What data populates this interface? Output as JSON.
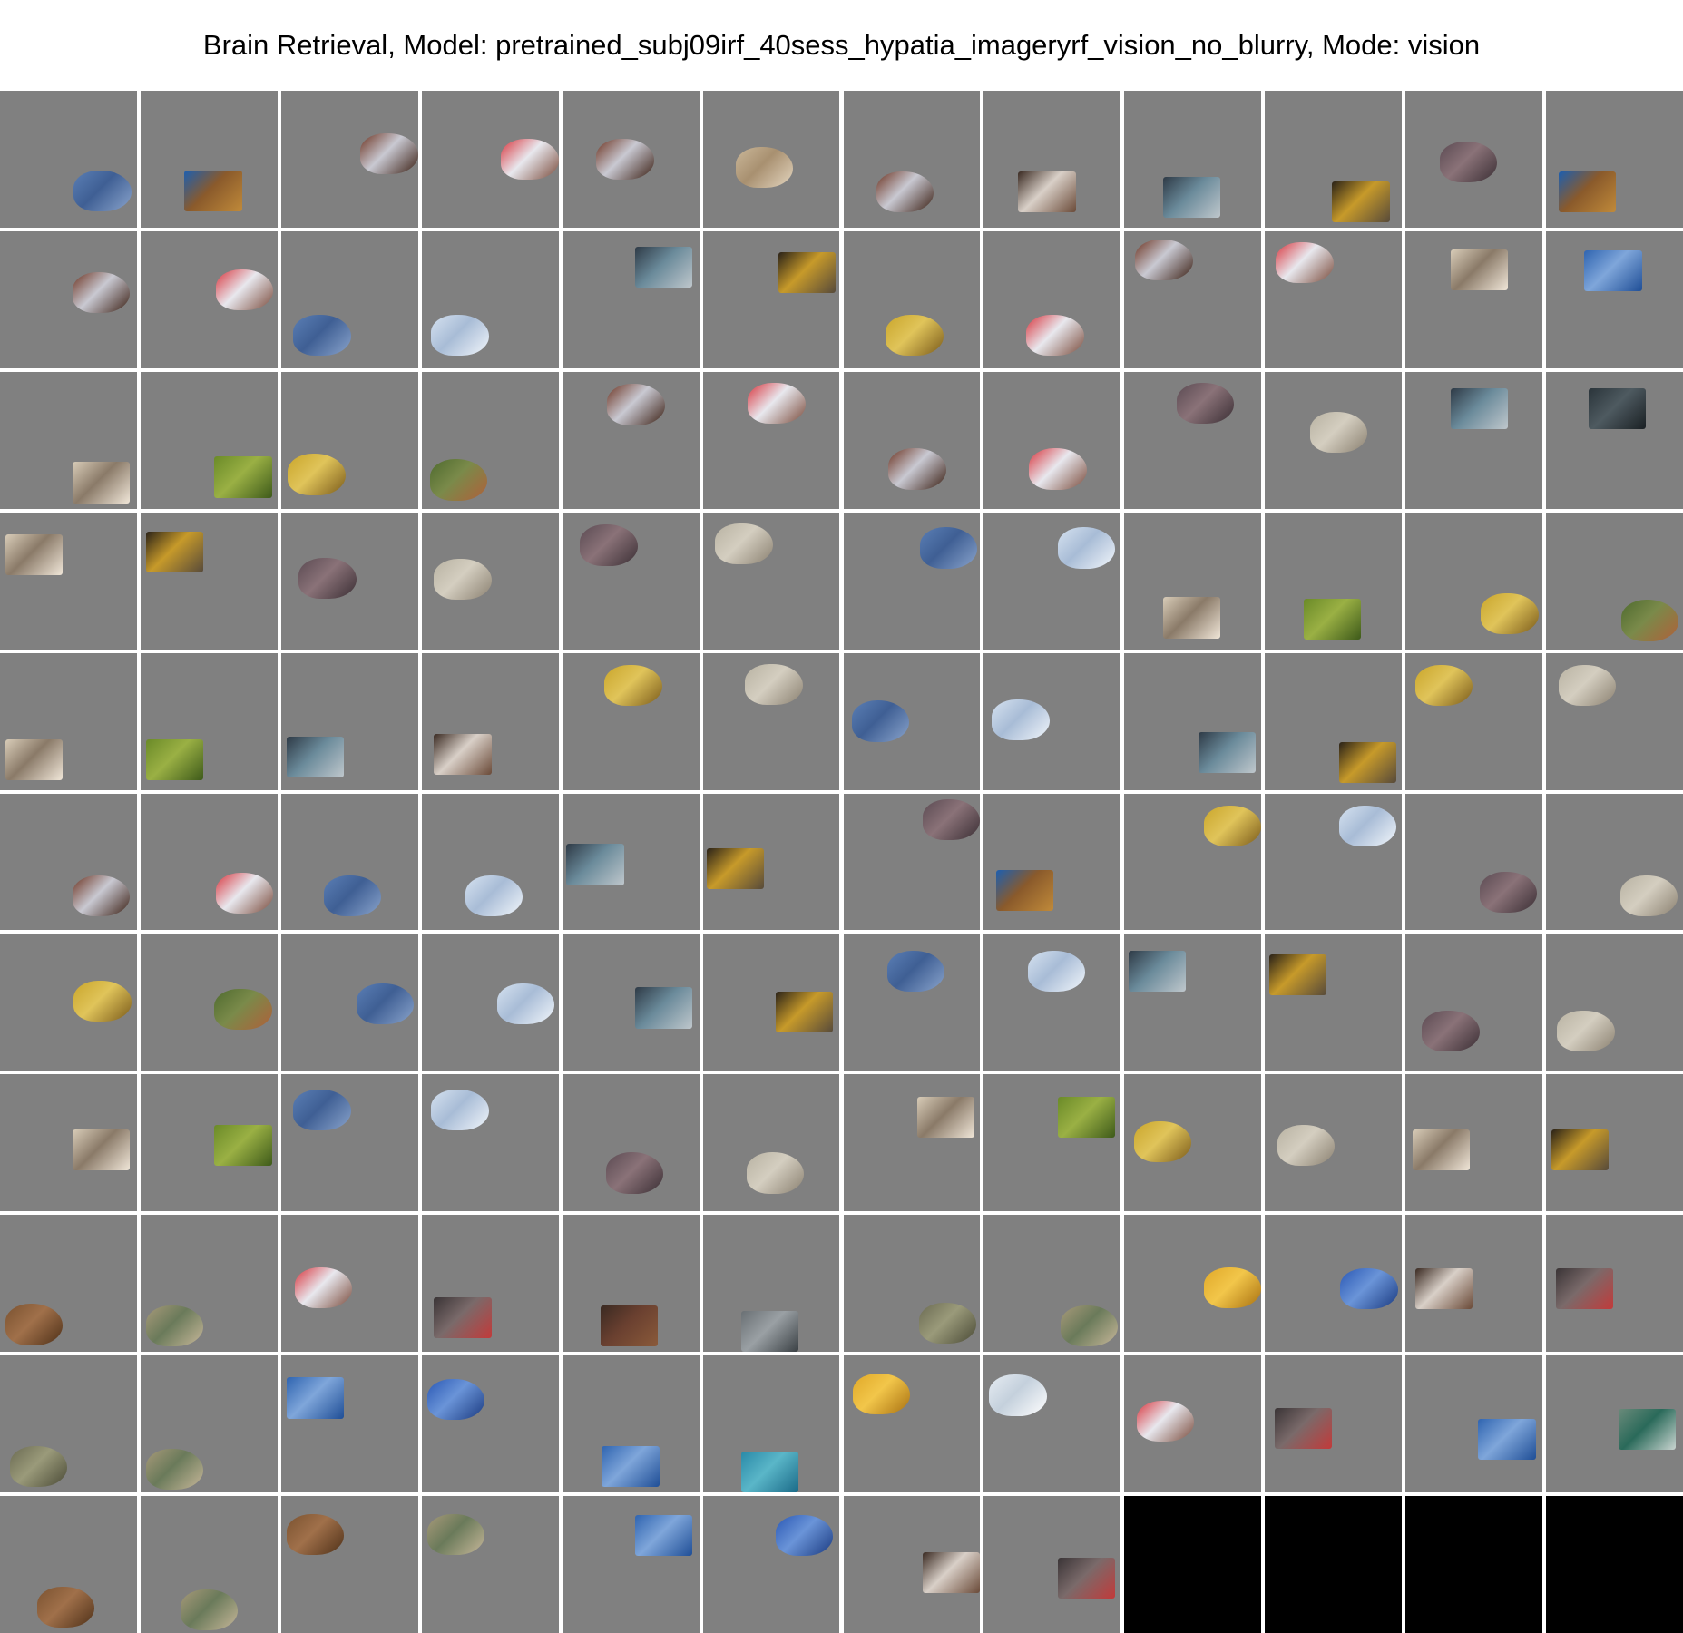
{
  "title": "Brain Retrieval, Model: pretrained_subj09irf_40sess_hypatia_imageryrf_vision_no_blurry, Mode: vision",
  "grid": {
    "rows": 11,
    "cols": 12,
    "empty_fill": "#000000",
    "cell_background": "#808080"
  },
  "thumbnail_types": {
    "coral": {
      "kind": "blob",
      "colors": [
        "#5b7fb5",
        "#3f5f94",
        "#8aa4cc"
      ]
    },
    "reef": {
      "kind": "photo",
      "colors": [
        "#1d5fb0",
        "#8a5a2b",
        "#c08a3a"
      ]
    },
    "baby": {
      "kind": "blob",
      "colors": [
        "#6b3220",
        "#c9c9d2",
        "#3a1e12"
      ]
    },
    "redshirt": {
      "kind": "blob",
      "colors": [
        "#d8343c",
        "#e8e8ee",
        "#7a4a3a"
      ]
    },
    "stones": {
      "kind": "blob",
      "colors": [
        "#cbb89a",
        "#a89070",
        "#e4d6c0"
      ]
    },
    "people": {
      "kind": "photo",
      "colors": [
        "#3a2a22",
        "#d9d0c8",
        "#6a4a38"
      ]
    },
    "crowd": {
      "kind": "photo",
      "colors": [
        "#2e3a46",
        "#6a8a9a",
        "#bfc7cc"
      ]
    },
    "crowdyellow": {
      "kind": "photo",
      "colors": [
        "#2a2218",
        "#c79a2a",
        "#574a3a"
      ]
    },
    "post": {
      "kind": "blob",
      "colors": [
        "#5a4a52",
        "#8a7278",
        "#3a2e34"
      ]
    },
    "stick": {
      "kind": "blob",
      "colors": [
        "#b8b2a2",
        "#d4cec0",
        "#8a8070"
      ]
    },
    "scroll": {
      "kind": "photo",
      "colors": [
        "#d8ccb8",
        "#8a7a68",
        "#f0e6d8"
      ]
    },
    "sky": {
      "kind": "photo",
      "colors": [
        "#2f64b0",
        "#7fa6da",
        "#1f4e96"
      ]
    },
    "leaves": {
      "kind": "blob",
      "colors": [
        "#c9a52a",
        "#e0c45a",
        "#7a5a1a"
      ]
    },
    "clouds": {
      "kind": "blob",
      "colors": [
        "#d6e2f0",
        "#a8bcd6",
        "#f2f6fb"
      ]
    },
    "grass": {
      "kind": "photo",
      "colors": [
        "#6a8a28",
        "#9ab044",
        "#3e5a1a"
      ]
    },
    "turtle": {
      "kind": "blob",
      "colors": [
        "#4e6a2e",
        "#7a8a4a",
        "#b0603a"
      ]
    },
    "darkpanel": {
      "kind": "photo",
      "colors": [
        "#2a343a",
        "#4e5a60",
        "#1a2024"
      ]
    },
    "walrus": {
      "kind": "blob",
      "colors": [
        "#7a5230",
        "#a0704a",
        "#4e3018"
      ]
    },
    "snake": {
      "kind": "blob",
      "colors": [
        "#a89a7a",
        "#6a7a5a",
        "#c8b89a"
      ]
    },
    "group": {
      "kind": "photo",
      "colors": [
        "#3a3436",
        "#7a6a6a",
        "#c23a3a"
      ]
    },
    "roof": {
      "kind": "photo",
      "colors": [
        "#3a2a22",
        "#6a4030",
        "#8a5a3a"
      ]
    },
    "road": {
      "kind": "photo",
      "colors": [
        "#6a7074",
        "#9aa0a4",
        "#3a4044"
      ]
    },
    "croc": {
      "kind": "blob",
      "colors": [
        "#6a6a52",
        "#9a9a7a",
        "#4a4a36"
      ]
    },
    "chips": {
      "kind": "blob",
      "colors": [
        "#e0a828",
        "#f2c64a",
        "#a87010"
      ]
    },
    "blueobj": {
      "kind": "blob",
      "colors": [
        "#2a58b4",
        "#6a94d8",
        "#1a3a80"
      ]
    },
    "sea": {
      "kind": "photo",
      "colors": [
        "#2a8aa8",
        "#5ab6c8",
        "#1a6a88"
      ]
    },
    "cloud": {
      "kind": "blob",
      "colors": [
        "#e6ecf2",
        "#c4d0dc",
        "#ffffff"
      ]
    },
    "seascape": {
      "kind": "photo",
      "colors": [
        "#6a8a7a",
        "#2a6a5a",
        "#c8d4d0"
      ]
    }
  },
  "cells": [
    [
      [
        "coral",
        0.54,
        0.58
      ],
      [
        "reef",
        0.32,
        0.58
      ],
      [
        "baby",
        0.58,
        0.31
      ],
      [
        "redshirt",
        0.6,
        0.35
      ],
      [
        "baby",
        0.25,
        0.35
      ],
      [
        "stones",
        0.24,
        0.41
      ],
      [
        "baby",
        0.24,
        0.59
      ],
      [
        "people",
        0.25,
        0.59
      ],
      [
        "crowd",
        0.28,
        0.63
      ],
      [
        "crowdyellow",
        0.49,
        0.66
      ],
      [
        "post",
        0.25,
        0.37
      ],
      [
        "reef",
        0.09,
        0.59
      ]
    ],
    [
      [
        "baby",
        0.53,
        0.3
      ],
      [
        "redshirt",
        0.55,
        0.28
      ],
      [
        "coral",
        0.09,
        0.61
      ],
      [
        "clouds",
        0.07,
        0.61
      ],
      [
        "crowd",
        0.53,
        0.11
      ],
      [
        "crowdyellow",
        0.55,
        0.15
      ],
      [
        "leaves",
        0.31,
        0.61
      ],
      [
        "redshirt",
        0.31,
        0.61
      ],
      [
        "baby",
        0.08,
        0.06
      ],
      [
        "redshirt",
        0.08,
        0.08
      ],
      [
        "scroll",
        0.33,
        0.13
      ],
      [
        "sky",
        0.28,
        0.14
      ]
    ],
    [
      [
        "scroll",
        0.53,
        0.66
      ],
      [
        "grass",
        0.54,
        0.62
      ],
      [
        "leaves",
        0.05,
        0.6
      ],
      [
        "turtle",
        0.06,
        0.64
      ],
      [
        "baby",
        0.33,
        0.09
      ],
      [
        "redshirt",
        0.33,
        0.08
      ],
      [
        "baby",
        0.33,
        0.56
      ],
      [
        "redshirt",
        0.33,
        0.56
      ],
      [
        "post",
        0.38,
        0.08
      ],
      [
        "stick",
        0.33,
        0.29
      ],
      [
        "crowd",
        0.33,
        0.12
      ],
      [
        "darkpanel",
        0.31,
        0.12
      ]
    ],
    [
      [
        "scroll",
        0.04,
        0.16
      ],
      [
        "crowdyellow",
        0.04,
        0.14
      ],
      [
        "post",
        0.13,
        0.33
      ],
      [
        "stick",
        0.09,
        0.34
      ],
      [
        "post",
        0.13,
        0.09
      ],
      [
        "stick",
        0.09,
        0.08
      ],
      [
        "coral",
        0.56,
        0.11
      ],
      [
        "clouds",
        0.54,
        0.11
      ],
      [
        "scroll",
        0.28,
        0.62
      ],
      [
        "grass",
        0.28,
        0.63
      ],
      [
        "leaves",
        0.55,
        0.59
      ],
      [
        "turtle",
        0.55,
        0.64
      ]
    ],
    [
      [
        "scroll",
        0.04,
        0.63
      ],
      [
        "grass",
        0.04,
        0.63
      ],
      [
        "crowd",
        0.04,
        0.61
      ],
      [
        "people",
        0.09,
        0.59
      ],
      [
        "leaves",
        0.31,
        0.09
      ],
      [
        "stick",
        0.31,
        0.08
      ],
      [
        "coral",
        0.06,
        0.35
      ],
      [
        "clouds",
        0.06,
        0.34
      ],
      [
        "crowd",
        0.54,
        0.58
      ],
      [
        "crowdyellow",
        0.54,
        0.65
      ],
      [
        "leaves",
        0.07,
        0.09
      ],
      [
        "stick",
        0.09,
        0.09
      ]
    ],
    [
      [
        "baby",
        0.53,
        0.6
      ],
      [
        "redshirt",
        0.55,
        0.58
      ],
      [
        "coral",
        0.31,
        0.6
      ],
      [
        "clouds",
        0.32,
        0.6
      ],
      [
        "crowd",
        0.03,
        0.37
      ],
      [
        "crowdyellow",
        0.03,
        0.4
      ],
      [
        "post",
        0.62,
        0.04
      ],
      [
        "reef",
        0.09,
        0.56
      ],
      [
        "leaves",
        0.6,
        0.09
      ],
      [
        "clouds",
        0.54,
        0.09
      ],
      [
        "post",
        0.54,
        0.57
      ],
      [
        "stick",
        0.54,
        0.6
      ]
    ],
    [
      [
        "leaves",
        0.54,
        0.34
      ],
      [
        "turtle",
        0.54,
        0.4
      ],
      [
        "coral",
        0.55,
        0.36
      ],
      [
        "clouds",
        0.55,
        0.36
      ],
      [
        "crowd",
        0.53,
        0.39
      ],
      [
        "crowdyellow",
        0.53,
        0.42
      ],
      [
        "coral",
        0.32,
        0.12
      ],
      [
        "clouds",
        0.32,
        0.12
      ],
      [
        "crowd",
        0.03,
        0.12
      ],
      [
        "crowdyellow",
        0.03,
        0.15
      ],
      [
        "post",
        0.12,
        0.56
      ],
      [
        "stick",
        0.08,
        0.56
      ]
    ],
    [
      [
        "scroll",
        0.53,
        0.4
      ],
      [
        "grass",
        0.54,
        0.37
      ],
      [
        "coral",
        0.09,
        0.11
      ],
      [
        "clouds",
        0.07,
        0.11
      ],
      [
        "post",
        0.32,
        0.57
      ],
      [
        "stick",
        0.32,
        0.57
      ],
      [
        "scroll",
        0.54,
        0.16
      ],
      [
        "grass",
        0.54,
        0.16
      ],
      [
        "leaves",
        0.07,
        0.34
      ],
      [
        "stick",
        0.09,
        0.37
      ],
      [
        "scroll",
        0.05,
        0.4
      ],
      [
        "crowdyellow",
        0.04,
        0.4
      ]
    ],
    [
      [
        "walrus",
        0.04,
        0.65
      ],
      [
        "snake",
        0.04,
        0.66
      ],
      [
        "redshirt",
        0.1,
        0.38
      ],
      [
        "group",
        0.09,
        0.6
      ],
      [
        "roof",
        0.28,
        0.66
      ],
      [
        "road",
        0.28,
        0.7
      ],
      [
        "croc",
        0.55,
        0.64
      ],
      [
        "snake",
        0.56,
        0.66
      ],
      [
        "chips",
        0.58,
        0.38
      ],
      [
        "blueobj",
        0.55,
        0.39
      ],
      [
        "people",
        0.07,
        0.39
      ],
      [
        "group",
        0.07,
        0.39
      ]
    ],
    [
      [
        "croc",
        0.07,
        0.66
      ],
      [
        "snake",
        0.04,
        0.68
      ],
      [
        "sky",
        0.04,
        0.16
      ],
      [
        "blueobj",
        0.04,
        0.17
      ],
      [
        "sky",
        0.29,
        0.66
      ],
      [
        "sea",
        0.28,
        0.7
      ],
      [
        "chips",
        0.07,
        0.13
      ],
      [
        "cloud",
        0.04,
        0.14
      ],
      [
        "redshirt",
        0.09,
        0.33
      ],
      [
        "group",
        0.07,
        0.38
      ],
      [
        "sky",
        0.53,
        0.46
      ],
      [
        "seascape",
        0.53,
        0.39
      ]
    ],
    [
      [
        "walrus",
        0.27,
        0.66
      ],
      [
        "snake",
        0.29,
        0.68
      ],
      [
        "walrus",
        0.04,
        0.13
      ],
      [
        "snake",
        0.04,
        0.13
      ],
      [
        "sky",
        0.53,
        0.14
      ],
      [
        "blueobj",
        0.53,
        0.14
      ],
      [
        "people",
        0.58,
        0.41
      ],
      [
        "group",
        0.54,
        0.45
      ],
      null,
      null,
      null,
      null
    ]
  ]
}
